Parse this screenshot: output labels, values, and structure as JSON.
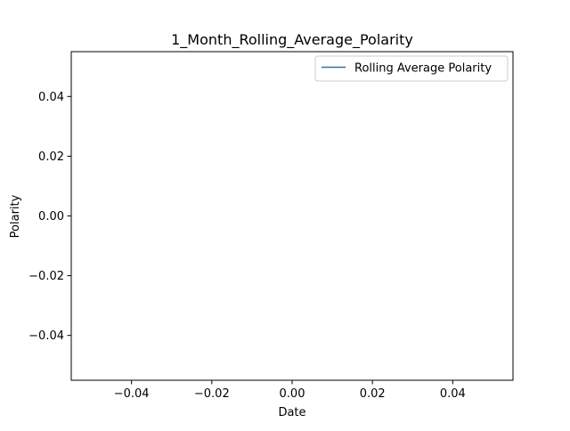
{
  "chart_data": {
    "type": "line",
    "title": "1_Month_Rolling_Average_Polarity",
    "xlabel": "Date",
    "ylabel": "Polarity",
    "xlim": [
      -0.055,
      0.055
    ],
    "ylim": [
      -0.055,
      0.055
    ],
    "xticks": [
      -0.04,
      -0.02,
      0.0,
      0.02,
      0.04
    ],
    "xtick_labels": [
      "−0.04",
      "−0.02",
      "0.00",
      "0.02",
      "0.04"
    ],
    "yticks": [
      -0.04,
      -0.02,
      0.0,
      0.02,
      0.04
    ],
    "ytick_labels": [
      "−0.04",
      "−0.02",
      "0.00",
      "0.02",
      "0.04"
    ],
    "grid": false,
    "legend": {
      "position": "upper right",
      "entries": [
        "Rolling Average Polarity"
      ]
    },
    "series": [
      {
        "name": "Rolling Average Polarity",
        "color": "#1f77b4",
        "x": [],
        "y": []
      }
    ]
  }
}
